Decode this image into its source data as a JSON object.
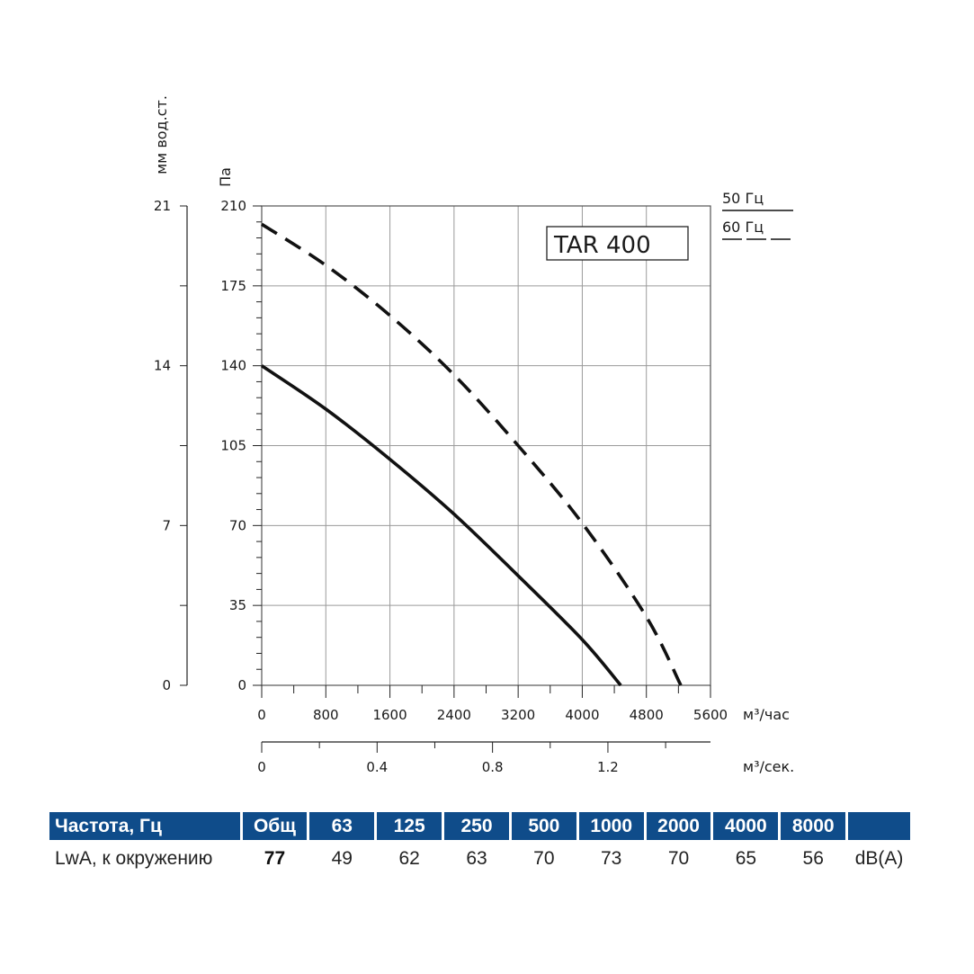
{
  "chart_data": {
    "type": "line",
    "title": "TAR 400",
    "xlabel": "м³/час",
    "x2label": "м³/сек.",
    "ylabel": "Па",
    "y2label": "мм вод.ст.",
    "xlim": [
      0,
      5600
    ],
    "ylim": [
      0,
      210
    ],
    "x_ticks": [
      "0",
      "800",
      "1600",
      "2400",
      "3200",
      "4000",
      "4800",
      "5600"
    ],
    "x2_ticks": [
      "0",
      "0.4",
      "0.8",
      "1.2"
    ],
    "y_ticks": [
      "0",
      "35",
      "70",
      "105",
      "140",
      "175",
      "210"
    ],
    "y2_ticks": [
      "0",
      "7",
      "14",
      "21"
    ],
    "legend": [
      "50 Гц",
      "60 Гц"
    ],
    "series": [
      {
        "name": "50 Гц",
        "style": "solid",
        "x": [
          0,
          800,
          1600,
          2400,
          3200,
          4000,
          4480
        ],
        "y": [
          140,
          121,
          99,
          75,
          48,
          20,
          0
        ]
      },
      {
        "name": "60 Гц",
        "style": "dashed",
        "x": [
          0,
          800,
          1600,
          2400,
          3200,
          4000,
          4800,
          5230
        ],
        "y": [
          202,
          184,
          162,
          136,
          105,
          71,
          30,
          0
        ]
      }
    ]
  },
  "table": {
    "header": [
      "Частота, Гц",
      "Общ",
      "63",
      "125",
      "250",
      "500",
      "1000",
      "2000",
      "4000",
      "8000",
      ""
    ],
    "values": [
      "LwA, к окружению",
      "77",
      "49",
      "62",
      "63",
      "70",
      "73",
      "70",
      "65",
      "56",
      "dB(A)"
    ]
  }
}
